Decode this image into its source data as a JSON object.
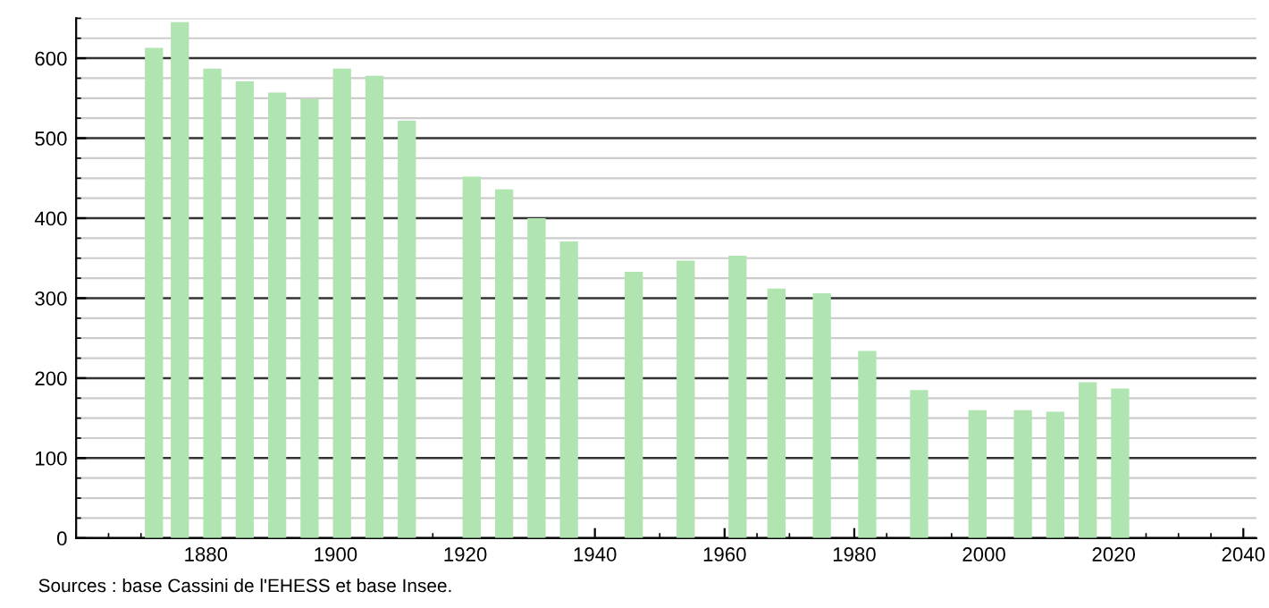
{
  "chart_data": {
    "type": "bar",
    "x": [
      1872,
      1876,
      1881,
      1886,
      1891,
      1896,
      1901,
      1906,
      1911,
      1921,
      1926,
      1931,
      1936,
      1946,
      1954,
      1962,
      1968,
      1975,
      1982,
      1990,
      1999,
      2006,
      2011,
      2016,
      2021
    ],
    "values": [
      613,
      645,
      587,
      571,
      557,
      549,
      587,
      578,
      522,
      452,
      436,
      400,
      371,
      333,
      347,
      353,
      312,
      306,
      234,
      185,
      160,
      160,
      158,
      195,
      187
    ],
    "color": "#b0e4b0",
    "xlim": [
      1860,
      2042
    ],
    "xticks": [
      1880,
      1900,
      1920,
      1940,
      1960,
      1980,
      2000,
      2020,
      2040
    ],
    "ylim": [
      0,
      650
    ],
    "yticks": [
      0,
      100,
      200,
      300,
      400,
      500,
      600
    ],
    "grid": "y",
    "legend": false,
    "annotations": [
      "Sources : base Cassini de l'EHESS et base Insee."
    ]
  }
}
